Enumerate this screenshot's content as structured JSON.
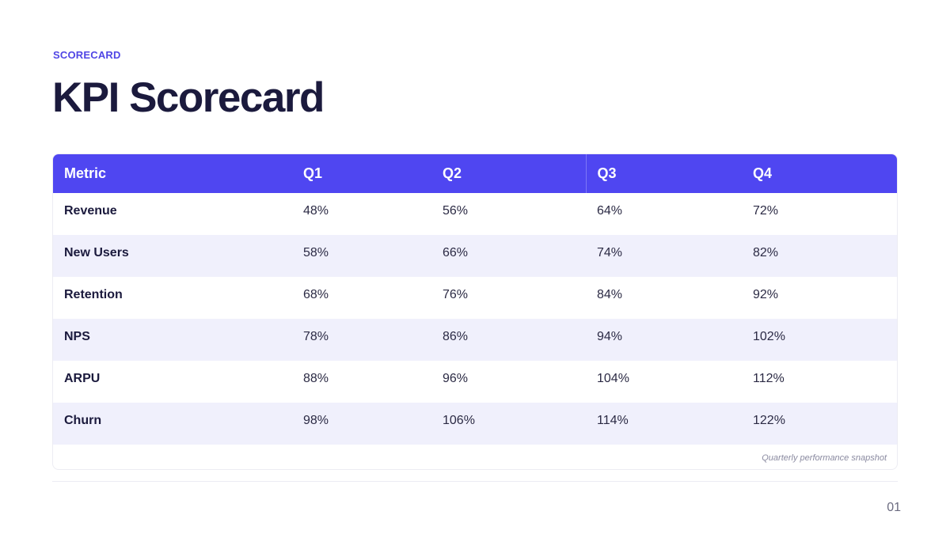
{
  "eyebrow": "SCORECARD",
  "title": "KPI Scorecard",
  "table": {
    "headers": [
      "Metric",
      "Q1",
      "Q2",
      "Q3",
      "Q4"
    ],
    "rows": [
      [
        "Revenue",
        "48%",
        "56%",
        "64%",
        "72%"
      ],
      [
        "New Users",
        "58%",
        "66%",
        "74%",
        "82%"
      ],
      [
        "Retention",
        "68%",
        "76%",
        "84%",
        "92%"
      ],
      [
        "NPS",
        "78%",
        "86%",
        "94%",
        "102%"
      ],
      [
        "ARPU",
        "88%",
        "96%",
        "104%",
        "112%"
      ],
      [
        "Churn",
        "98%",
        "106%",
        "114%",
        "122%"
      ]
    ],
    "caption": "Quarterly performance snapshot"
  },
  "page_number": "01",
  "colors": {
    "accent": "#4f46f1",
    "eyebrow": "#5046e5",
    "title": "#1b1a3d",
    "stripe": "#f0f0fc"
  }
}
